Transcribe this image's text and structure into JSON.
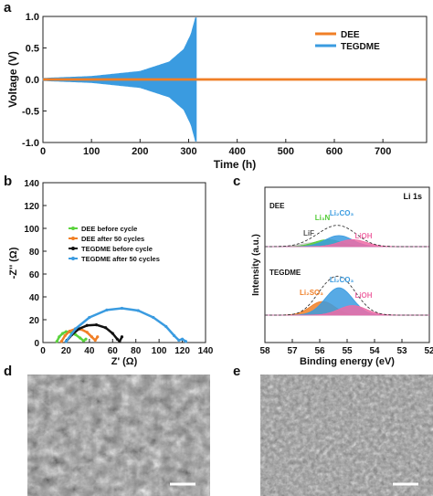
{
  "panels": {
    "a": "a",
    "b": "b",
    "c": "c",
    "d": "d",
    "e": "e"
  },
  "chart_data": [
    {
      "panel": "a",
      "type": "line",
      "xlabel": "Time (h)",
      "ylabel": "Voltage (V)",
      "xlim": [
        0,
        790
      ],
      "ylim": [
        -1.0,
        1.0
      ],
      "xticks": [
        0,
        100,
        200,
        300,
        400,
        500,
        600,
        700
      ],
      "yticks": [
        -1.0,
        -0.5,
        0.0,
        0.5,
        1.0
      ],
      "legend_position": "top-right",
      "series": [
        {
          "name": "DEE",
          "color": "#f07f26",
          "amplitude": 0.02,
          "x_range": [
            0,
            790
          ]
        },
        {
          "name": "TEGDME",
          "color": "#3a9be0",
          "amplitude_points": [
            [
              0,
              0.02
            ],
            [
              100,
              0.05
            ],
            [
              200,
              0.13
            ],
            [
              260,
              0.28
            ],
            [
              290,
              0.48
            ],
            [
              305,
              0.72
            ],
            [
              314,
              0.98
            ]
          ],
          "x_range": [
            0,
            316
          ]
        }
      ]
    },
    {
      "panel": "b",
      "type": "scatter",
      "xlabel": "Z' (Ω)",
      "ylabel": "-Z'' (Ω)",
      "xlim": [
        0,
        140
      ],
      "ylim": [
        0,
        140
      ],
      "xticks": [
        0,
        20,
        40,
        60,
        80,
        100,
        120,
        140
      ],
      "yticks": [
        0,
        20,
        40,
        60,
        80,
        100,
        120,
        140
      ],
      "legend_position": "center",
      "series": [
        {
          "name": "DEE before cycle",
          "color": "#5ad33d",
          "marker": "circle",
          "x": [
            12,
            14,
            17,
            20,
            24,
            28,
            32,
            35,
            37
          ],
          "y": [
            1,
            5,
            8,
            9.5,
            9,
            7,
            4,
            1.5,
            3
          ]
        },
        {
          "name": "DEE after 50 cycles",
          "color": "#f07f26",
          "marker": "circle",
          "x": [
            16,
            19,
            23,
            28,
            33,
            38,
            42,
            45,
            47
          ],
          "y": [
            1,
            6,
            10,
            12,
            11.5,
            9,
            5,
            2,
            5
          ]
        },
        {
          "name": "TEGDME before cycle",
          "color": "#111111",
          "marker": "circle",
          "x": [
            20,
            25,
            31,
            38,
            46,
            54,
            60,
            64,
            66,
            68
          ],
          "y": [
            1,
            7,
            12,
            15,
            15.5,
            13,
            8,
            3,
            1,
            5
          ]
        },
        {
          "name": "TEGDME after 50 cycles",
          "color": "#3a9be0",
          "marker": "circle",
          "x": [
            20,
            28,
            40,
            55,
            68,
            82,
            95,
            106,
            113,
            117,
            120,
            123
          ],
          "y": [
            1,
            12,
            22,
            28.5,
            30,
            28,
            22,
            14,
            6,
            2,
            3,
            1
          ]
        }
      ]
    },
    {
      "panel": "c",
      "type": "line",
      "xlabel": "Binding energy (eV)",
      "ylabel": "Intensity (a.u.)",
      "xlim": [
        58,
        52
      ],
      "xticks": [
        58,
        57,
        56,
        55,
        54,
        53,
        52
      ],
      "annotation": "Li 1s",
      "spectra": [
        {
          "name": "DEE",
          "labels": [
            {
              "text": "LiF",
              "x": 56.4
            },
            {
              "text": "Li₃N",
              "x": 55.9
            },
            {
              "text": "Li₂CO₃",
              "x": 55.2
            },
            {
              "text": "LiOH",
              "x": 54.4
            }
          ],
          "components": [
            {
              "label": "LiF",
              "center": 56.2,
              "height": 0.2,
              "width": 0.5,
              "color": "#c9c9c9"
            },
            {
              "label": "Li₃N",
              "center": 55.7,
              "height": 0.35,
              "width": 0.5,
              "color": "#52cc37"
            },
            {
              "label": "Li₂CO₃",
              "center": 55.3,
              "height": 0.55,
              "width": 0.5,
              "color": "#3a9be0"
            },
            {
              "label": "LiOH",
              "center": 54.8,
              "height": 0.35,
              "width": 0.5,
              "color": "#ef6ca6"
            }
          ]
        },
        {
          "name": "TEGDME",
          "labels": [
            {
              "text": "Li₂SO₃",
              "x": 56.3
            },
            {
              "text": "Li₂CO₃",
              "x": 55.2
            },
            {
              "text": "LiOH",
              "x": 54.4
            }
          ],
          "components": [
            {
              "label": "Li₂SO₃",
              "center": 55.9,
              "height": 0.5,
              "width": 0.45,
              "color": "#f07f26"
            },
            {
              "label": "Li₂CO₃",
              "center": 55.3,
              "height": 1.0,
              "width": 0.5,
              "color": "#3a9be0"
            },
            {
              "label": "LiOH",
              "center": 54.8,
              "height": 0.35,
              "width": 0.5,
              "color": "#ef6ca6"
            }
          ]
        }
      ]
    }
  ],
  "images": {
    "d": {
      "description_color": "#8b8b8b",
      "has_scale_bar": true
    },
    "e": {
      "description_color": "#8f8f8f",
      "has_scale_bar": true
    }
  }
}
